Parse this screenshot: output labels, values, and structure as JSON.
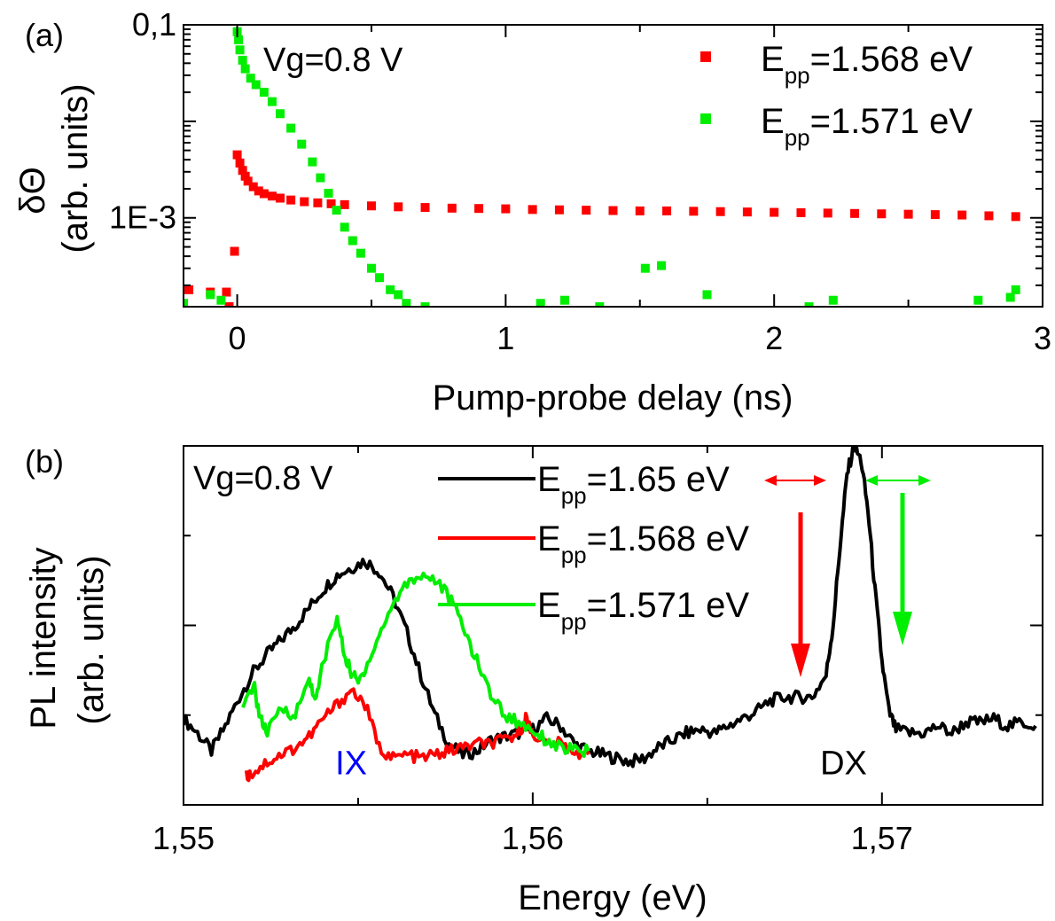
{
  "chart_data": [
    {
      "panel": "(a)",
      "type": "scatter",
      "yscale": "log",
      "annotation": "Vg=0.8 V",
      "xlabel": "Pump-probe delay (ns)",
      "ylabel_line1": "δΘ",
      "ylabel_line2": "(arb. units)",
      "xlim": [
        -0.2,
        3.0
      ],
      "ylim": [
        0.00012,
        0.1
      ],
      "xticks": [
        {
          "value": 0,
          "label": "0"
        },
        {
          "value": 1,
          "label": "1"
        },
        {
          "value": 2,
          "label": "2"
        },
        {
          "value": 3,
          "label": "3"
        }
      ],
      "yticks": [
        {
          "value": 0.1,
          "label": "0,1"
        },
        {
          "value": 0.001,
          "label": "1E-3"
        }
      ],
      "legend_position": "top-right",
      "series": [
        {
          "name": "E_pp=1.568 eV",
          "legend_main": "E",
          "legend_sub": "pp",
          "legend_rest": "=1.568 eV",
          "color": "#ff0000",
          "points": [
            [
              -0.18,
              0.00018
            ],
            [
              -0.1,
              0.00017
            ],
            [
              -0.04,
              0.00017
            ],
            [
              -0.01,
              0.00045
            ],
            [
              -0.03,
              0.00012
            ],
            [
              0.0,
              0.0045
            ],
            [
              0.01,
              0.0037
            ],
            [
              0.02,
              0.0031
            ],
            [
              0.03,
              0.0027
            ],
            [
              0.04,
              0.0024
            ],
            [
              0.06,
              0.0021
            ],
            [
              0.08,
              0.0019
            ],
            [
              0.1,
              0.00178
            ],
            [
              0.13,
              0.00168
            ],
            [
              0.16,
              0.0016
            ],
            [
              0.2,
              0.00153
            ],
            [
              0.25,
              0.00147
            ],
            [
              0.3,
              0.00143
            ],
            [
              0.35,
              0.0014
            ],
            [
              0.4,
              0.00137
            ],
            [
              0.5,
              0.00133
            ],
            [
              0.6,
              0.0013
            ],
            [
              0.7,
              0.00128
            ],
            [
              0.8,
              0.00126
            ],
            [
              0.9,
              0.00125
            ],
            [
              1.0,
              0.00124
            ],
            [
              1.1,
              0.00122
            ],
            [
              1.2,
              0.00121
            ],
            [
              1.3,
              0.0012
            ],
            [
              1.4,
              0.00119
            ],
            [
              1.5,
              0.00118
            ],
            [
              1.6,
              0.00118
            ],
            [
              1.7,
              0.00117
            ],
            [
              1.8,
              0.00116
            ],
            [
              1.9,
              0.00115
            ],
            [
              2.0,
              0.00114
            ],
            [
              2.1,
              0.00113
            ],
            [
              2.2,
              0.00112
            ],
            [
              2.3,
              0.00111
            ],
            [
              2.4,
              0.0011
            ],
            [
              2.5,
              0.00109
            ],
            [
              2.6,
              0.00108
            ],
            [
              2.7,
              0.00107
            ],
            [
              2.8,
              0.00105
            ],
            [
              2.9,
              0.00103
            ]
          ]
        },
        {
          "name": "E_pp=1.571 eV",
          "legend_main": "E",
          "legend_sub": "pp",
          "legend_rest": "=1.571 eV",
          "color": "#00ee00",
          "points": [
            [
              -0.2,
              0.00013
            ],
            [
              -0.1,
              0.00016
            ],
            [
              -0.06,
              0.00014
            ],
            [
              0.0,
              0.085
            ],
            [
              0.005,
              0.07
            ],
            [
              0.01,
              0.055
            ],
            [
              0.02,
              0.043
            ],
            [
              0.03,
              0.035
            ],
            [
              0.05,
              0.028
            ],
            [
              0.07,
              0.024
            ],
            [
              0.1,
              0.02
            ],
            [
              0.13,
              0.016
            ],
            [
              0.16,
              0.012
            ],
            [
              0.2,
              0.0085
            ],
            [
              0.24,
              0.0058
            ],
            [
              0.28,
              0.0038
            ],
            [
              0.31,
              0.0026
            ],
            [
              0.34,
              0.0018
            ],
            [
              0.37,
              0.0012
            ],
            [
              0.4,
              0.0008
            ],
            [
              0.43,
              0.00058
            ],
            [
              0.46,
              0.00043
            ],
            [
              0.5,
              0.0003
            ],
            [
              0.53,
              0.00024
            ],
            [
              0.57,
              0.00018
            ],
            [
              0.6,
              0.00016
            ],
            [
              0.63,
              0.00013
            ],
            [
              0.7,
              0.00012
            ],
            [
              1.13,
              0.00013
            ],
            [
              1.22,
              0.00014
            ],
            [
              1.35,
              0.00012
            ],
            [
              1.52,
              0.0003
            ],
            [
              1.58,
              0.00032
            ],
            [
              1.75,
              0.00016
            ],
            [
              2.13,
              0.00012
            ],
            [
              2.22,
              0.00014
            ],
            [
              2.76,
              0.00014
            ],
            [
              2.88,
              0.00015
            ],
            [
              2.9,
              0.00018
            ]
          ]
        }
      ]
    },
    {
      "panel": "(b)",
      "type": "line",
      "annotation": "Vg=0.8 V",
      "xlabel": "Energy (eV)",
      "ylabel_line1": "PL intensity",
      "ylabel_line2": "(arb. units)",
      "xlim": [
        1.55,
        1.5746
      ],
      "ylim": [
        0,
        1
      ],
      "xticks": [
        {
          "value": 1.55,
          "label": "1,55"
        },
        {
          "value": 1.56,
          "label": "1,56"
        },
        {
          "value": 1.57,
          "label": "1,57"
        }
      ],
      "legend_position": "top-center",
      "peak_labels": [
        {
          "text": "IX",
          "x": 1.5548,
          "y": 0.12,
          "color": "#0000ff"
        },
        {
          "text": "DX",
          "x": 1.5689,
          "y": 0.12,
          "color": "#000000"
        }
      ],
      "series": [
        {
          "name": "E_pp=1.65 eV",
          "legend_main": "E",
          "legend_sub": "pp",
          "legend_rest": "=1.65 eV",
          "color": "#000000",
          "x": [
            1.55,
            1.5504,
            1.5508,
            1.5512,
            1.5516,
            1.552,
            1.5524,
            1.5528,
            1.5532,
            1.5536,
            1.554,
            1.5544,
            1.5548,
            1.5552,
            1.5556,
            1.556,
            1.5564,
            1.5568,
            1.5572,
            1.5576,
            1.558,
            1.5584,
            1.5588,
            1.5592,
            1.5596,
            1.56,
            1.5604,
            1.5608,
            1.5612,
            1.5616,
            1.562,
            1.5624,
            1.5628,
            1.5632,
            1.5636,
            1.564,
            1.5644,
            1.5648,
            1.5652,
            1.5656,
            1.566,
            1.5664,
            1.5668,
            1.5672,
            1.5676,
            1.568,
            1.5684,
            1.5686,
            1.5688,
            1.569,
            1.5692,
            1.5694,
            1.5696,
            1.5698,
            1.57,
            1.5702,
            1.5704,
            1.5708,
            1.5712,
            1.5716,
            1.572,
            1.5724,
            1.5728,
            1.5732,
            1.5736,
            1.574,
            1.5744
          ],
          "y": [
            0.24,
            0.2,
            0.15,
            0.22,
            0.3,
            0.37,
            0.42,
            0.46,
            0.5,
            0.55,
            0.6,
            0.64,
            0.66,
            0.68,
            0.65,
            0.58,
            0.48,
            0.36,
            0.25,
            0.17,
            0.14,
            0.15,
            0.18,
            0.19,
            0.2,
            0.21,
            0.24,
            0.22,
            0.17,
            0.15,
            0.14,
            0.13,
            0.12,
            0.13,
            0.16,
            0.18,
            0.2,
            0.21,
            0.2,
            0.22,
            0.24,
            0.26,
            0.29,
            0.3,
            0.3,
            0.3,
            0.36,
            0.5,
            0.72,
            0.92,
            1.0,
            0.96,
            0.82,
            0.6,
            0.4,
            0.26,
            0.21,
            0.2,
            0.2,
            0.22,
            0.2,
            0.23,
            0.23,
            0.24,
            0.22,
            0.23,
            0.22
          ]
        },
        {
          "name": "E_pp=1.568 eV",
          "legend_main": "E",
          "legend_sub": "pp",
          "legend_rest": "=1.568 eV",
          "color": "#ff0000",
          "x": [
            1.5518,
            1.552,
            1.5524,
            1.5528,
            1.5532,
            1.5536,
            1.554,
            1.5544,
            1.5548,
            1.5552,
            1.5556,
            1.556,
            1.5564,
            1.5568,
            1.5572,
            1.5576,
            1.558,
            1.5584,
            1.5588,
            1.5592,
            1.5596,
            1.5598,
            1.56,
            1.5604,
            1.5608,
            1.5612,
            1.5616
          ],
          "y": [
            0.08,
            0.09,
            0.12,
            0.14,
            0.16,
            0.19,
            0.24,
            0.28,
            0.32,
            0.28,
            0.16,
            0.13,
            0.14,
            0.13,
            0.14,
            0.15,
            0.16,
            0.17,
            0.17,
            0.18,
            0.2,
            0.24,
            0.2,
            0.17,
            0.17,
            0.15,
            0.14
          ]
        },
        {
          "name": "E_pp=1.571 eV",
          "legend_main": "E",
          "legend_sub": "pp",
          "legend_rest": "=1.571 eV",
          "color": "#00ee00",
          "x": [
            1.5517,
            1.552,
            1.5522,
            1.5524,
            1.5528,
            1.5532,
            1.5536,
            1.5538,
            1.554,
            1.5544,
            1.5546,
            1.5548,
            1.555,
            1.5552,
            1.5556,
            1.556,
            1.5564,
            1.5568,
            1.5572,
            1.5576,
            1.558,
            1.5584,
            1.5588,
            1.5592,
            1.5596,
            1.56,
            1.5604,
            1.5608,
            1.5612,
            1.5616
          ],
          "y": [
            0.26,
            0.34,
            0.24,
            0.2,
            0.27,
            0.25,
            0.35,
            0.29,
            0.4,
            0.52,
            0.42,
            0.37,
            0.34,
            0.38,
            0.47,
            0.56,
            0.62,
            0.64,
            0.63,
            0.58,
            0.5,
            0.4,
            0.31,
            0.25,
            0.23,
            0.21,
            0.18,
            0.16,
            0.15,
            0.15
          ]
        }
      ]
    }
  ]
}
